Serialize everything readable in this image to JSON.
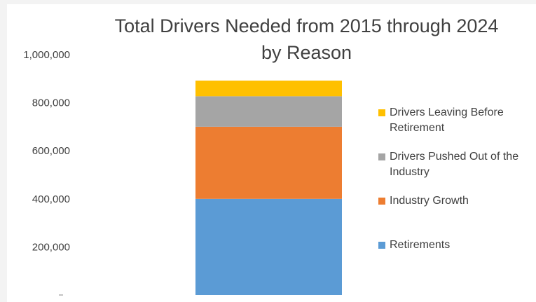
{
  "chart_data": {
    "type": "bar",
    "stacked": true,
    "title_lines": [
      "Total Drivers Needed from 2015 through 2024",
      "by Reason"
    ],
    "categories": [
      ""
    ],
    "series": [
      {
        "name": "Retirements",
        "values": [
          400000
        ],
        "color": "#5b9bd5"
      },
      {
        "name": "Industry Growth",
        "values": [
          300000
        ],
        "color": "#ed7d31"
      },
      {
        "name": "Drivers Pushed Out of the Industry",
        "values": [
          127000
        ],
        "color": "#a5a5a5"
      },
      {
        "name": "Drivers Leaving Before Retirement",
        "values": [
          65000
        ],
        "color": "#ffc000"
      }
    ],
    "y_ticks": [
      "0",
      "200,000",
      "400,000",
      "600,000",
      "800,000",
      "1,000,000"
    ],
    "ylim": [
      0,
      1000000
    ],
    "grid": false,
    "legend_position": "right"
  }
}
